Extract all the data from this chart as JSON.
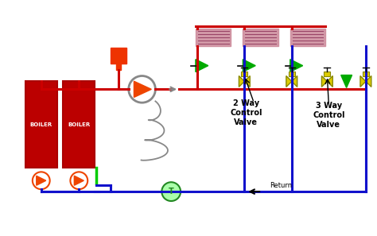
{
  "bg_color": "#ffffff",
  "red": "#cc0000",
  "blue": "#1111cc",
  "orange_red": "#ee3300",
  "green": "#00aa00",
  "yellow": "#ddcc00",
  "coil_pink": "#cc8899",
  "coil_line": "#994466",
  "pump_color": "#ee4400",
  "gray": "#888888",
  "light_green_fill": "#aaffaa",
  "light_green_edge": "#228822",
  "label_2way": "2 Way\nControl\nValve",
  "label_3way": "3 Way\nControl\nValve",
  "label_return": "Return",
  "label_boiler": "BOILER",
  "label_T": "T"
}
